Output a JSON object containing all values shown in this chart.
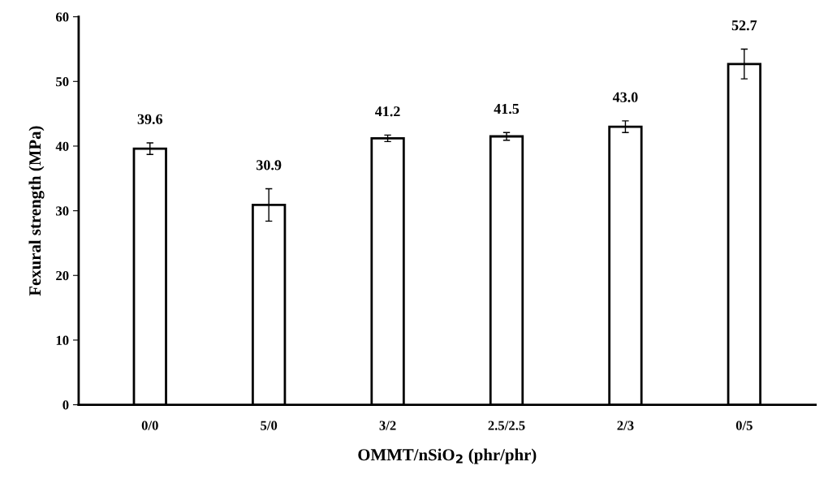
{
  "chart_data": {
    "type": "bar",
    "xlabel": "OMMT/nSiO$_{2}$ (phr/phr)",
    "ylabel": "Fexural strength (MPa)",
    "categories": [
      "0/0",
      "5/0",
      "3/2",
      "2.5/2.5",
      "2/3",
      "0/5"
    ],
    "values": [
      39.6,
      30.9,
      41.2,
      41.5,
      43.0,
      52.7
    ],
    "value_labels": [
      "39.6",
      "30.9",
      "41.2",
      "41.5",
      "43.0",
      "52.7"
    ],
    "errors": [
      0.9,
      2.5,
      0.5,
      0.6,
      0.9,
      2.3
    ],
    "color": "#ffffff",
    "ylim": [
      0,
      60
    ],
    "yticks": [
      0,
      10,
      20,
      30,
      40,
      50,
      60
    ],
    "grid": false,
    "legend": false
  }
}
